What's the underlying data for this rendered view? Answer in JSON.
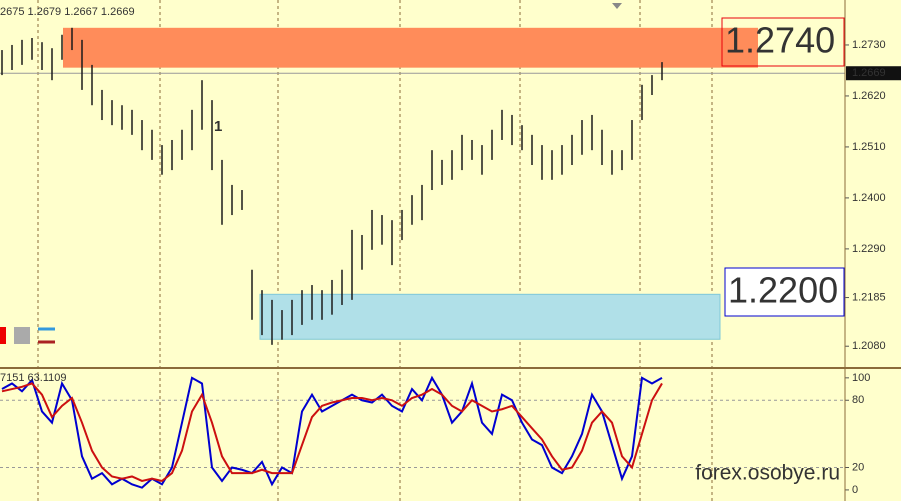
{
  "chart_data": [
    {
      "type": "hilo",
      "title": "2675 1.2679 1.2667 1.2669",
      "color": "#1a1a1a",
      "ylim": [
        1.2033,
        1.2827
      ],
      "yticks": [
        {
          "value": 1.273,
          "label": "1.2730"
        },
        {
          "value": 1.262,
          "label": "1.2620"
        },
        {
          "value": 1.251,
          "label": "1.2510"
        },
        {
          "value": 1.24,
          "label": "1.2400"
        },
        {
          "value": 1.229,
          "label": "1.2290"
        },
        {
          "value": 1.2185,
          "label": "1.2185"
        },
        {
          "value": 1.208,
          "label": "1.2080"
        }
      ],
      "high": [
        1.2719,
        1.273,
        1.2741,
        1.2745,
        1.2736,
        1.2723,
        1.2752,
        1.2767,
        1.2741,
        1.2687,
        1.2633,
        1.2611,
        1.26,
        1.259,
        1.2568,
        1.2547,
        1.2514,
        1.2525,
        1.2547,
        1.259,
        1.2654,
        1.2611,
        1.2482,
        1.2428,
        1.2417,
        1.2245,
        1.2201,
        1.218,
        1.2158,
        1.218,
        1.2201,
        1.2212,
        1.2201,
        1.2223,
        1.2245,
        1.2331,
        1.232,
        1.2374,
        1.2363,
        1.2352,
        1.2374,
        1.2406,
        1.2428,
        1.2503,
        1.2482,
        1.2503,
        1.2536,
        1.2525,
        1.2514,
        1.2547,
        1.259,
        1.2579,
        1.2557,
        1.2536,
        1.2514,
        1.2503,
        1.2514,
        1.2536,
        1.2568,
        1.2579,
        1.2547,
        1.2503,
        1.2503,
        1.2568,
        1.2644,
        1.2665,
        1.2693
      ],
      "low": [
        1.2665,
        1.2676,
        1.2687,
        1.2698,
        1.2676,
        1.2654,
        1.2698,
        1.2719,
        1.2633,
        1.26,
        1.2568,
        1.2557,
        1.2547,
        1.2536,
        1.2503,
        1.2482,
        1.245,
        1.246,
        1.2482,
        1.2503,
        1.2547,
        1.246,
        1.2342,
        1.2363,
        1.2374,
        1.2137,
        1.2104,
        1.2083,
        1.2094,
        1.2104,
        1.2126,
        1.2137,
        1.2137,
        1.2148,
        1.2169,
        1.218,
        1.2245,
        1.2288,
        1.2299,
        1.2255,
        1.2309,
        1.2342,
        1.2352,
        1.2417,
        1.2428,
        1.2439,
        1.246,
        1.2482,
        1.245,
        1.2482,
        1.2525,
        1.2514,
        1.2503,
        1.2471,
        1.2439,
        1.2439,
        1.245,
        1.2471,
        1.2493,
        1.2503,
        1.2471,
        1.245,
        1.246,
        1.2482,
        1.2568,
        1.2622,
        1.2654
      ],
      "current": 1.2669,
      "zones": [
        {
          "label": "1.2740",
          "range": [
            1.2681,
            1.2767
          ],
          "color": "#ff8c5a",
          "text_color": "#e8000b"
        },
        {
          "label": "1.2200",
          "range": [
            1.2095,
            1.2192
          ],
          "color": "#b0e0e8",
          "text_color": "#0000d0"
        }
      ],
      "annotation": "1",
      "watermark": "forex.osobye.ru"
    },
    {
      "type": "line",
      "title": "7151 63.1109",
      "ylim": [
        -9,
        107
      ],
      "yticks": [
        100,
        80,
        20,
        0
      ],
      "levels": [
        80,
        20
      ],
      "series": [
        {
          "name": "main",
          "color": "#0000d0",
          "values": [
            90,
            95,
            88,
            98,
            70,
            60,
            95,
            80,
            30,
            10,
            15,
            5,
            10,
            5,
            2,
            10,
            5,
            20,
            60,
            100,
            95,
            20,
            8,
            20,
            18,
            15,
            25,
            5,
            20,
            15,
            70,
            85,
            70,
            75,
            80,
            85,
            80,
            78,
            85,
            75,
            70,
            90,
            80,
            100,
            85,
            60,
            70,
            95,
            60,
            50,
            85,
            80,
            60,
            45,
            40,
            20,
            15,
            30,
            50,
            85,
            70,
            40,
            10,
            30,
            100,
            95,
            100
          ]
        },
        {
          "name": "signal",
          "color": "#cc1010",
          "values": [
            88,
            90,
            92,
            95,
            85,
            65,
            75,
            82,
            60,
            35,
            20,
            12,
            10,
            12,
            8,
            10,
            8,
            15,
            35,
            70,
            85,
            60,
            30,
            15,
            15,
            15,
            18,
            15,
            15,
            15,
            40,
            65,
            75,
            78,
            80,
            82,
            82,
            80,
            82,
            80,
            75,
            82,
            85,
            90,
            85,
            75,
            70,
            80,
            75,
            70,
            72,
            75,
            65,
            55,
            45,
            30,
            18,
            20,
            35,
            60,
            70,
            60,
            30,
            20,
            50,
            80,
            95
          ]
        }
      ]
    }
  ]
}
